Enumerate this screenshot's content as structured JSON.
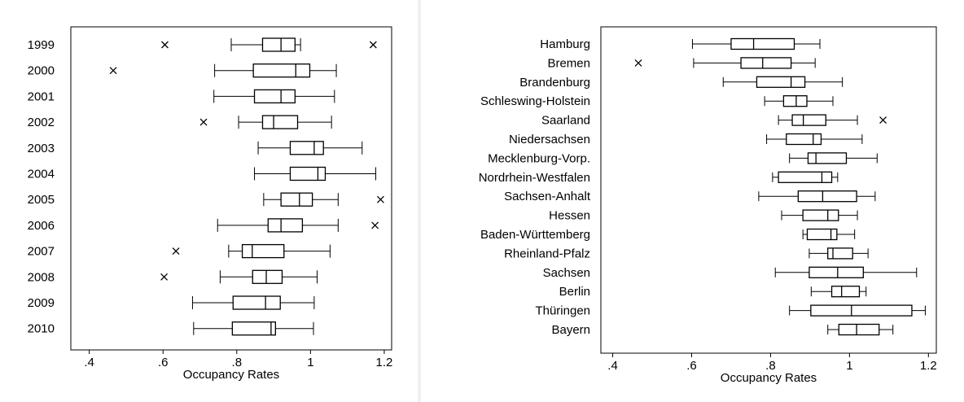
{
  "chart_data": [
    {
      "type": "boxplot",
      "orientation": "horizontal",
      "xlabel": "Occupancy Rates",
      "xlim": [
        0.35,
        1.22
      ],
      "xticks": [
        0.4,
        0.6,
        0.8,
        1.0,
        1.2
      ],
      "xtick_labels": [
        ".4",
        ".6",
        ".8",
        "1",
        "1.2"
      ],
      "categories": [
        "1999",
        "2000",
        "2001",
        "2002",
        "2003",
        "2004",
        "2005",
        "2006",
        "2007",
        "2008",
        "2009",
        "2010"
      ],
      "boxes": [
        {
          "label": "1999",
          "whisker_low": 0.785,
          "q1": 0.87,
          "median": 0.92,
          "q3": 0.958,
          "whisker_high": 0.973,
          "outliers": [
            0.605,
            1.17
          ]
        },
        {
          "label": "2000",
          "whisker_low": 0.74,
          "q1": 0.845,
          "median": 0.96,
          "q3": 0.998,
          "whisker_high": 1.07,
          "outliers": [
            0.465
          ]
        },
        {
          "label": "2001",
          "whisker_low": 0.738,
          "q1": 0.848,
          "median": 0.92,
          "q3": 0.958,
          "whisker_high": 1.065,
          "outliers": []
        },
        {
          "label": "2002",
          "whisker_low": 0.805,
          "q1": 0.87,
          "median": 0.9,
          "q3": 0.965,
          "whisker_high": 1.057,
          "outliers": [
            0.71
          ]
        },
        {
          "label": "2003",
          "whisker_low": 0.858,
          "q1": 0.945,
          "median": 1.01,
          "q3": 1.035,
          "whisker_high": 1.14,
          "outliers": []
        },
        {
          "label": "2004",
          "whisker_low": 0.848,
          "q1": 0.945,
          "median": 1.02,
          "q3": 1.04,
          "whisker_high": 1.177,
          "outliers": []
        },
        {
          "label": "2005",
          "whisker_low": 0.873,
          "q1": 0.92,
          "median": 0.97,
          "q3": 1.005,
          "whisker_high": 1.075,
          "outliers": [
            1.19
          ]
        },
        {
          "label": "2006",
          "whisker_low": 0.748,
          "q1": 0.885,
          "median": 0.92,
          "q3": 0.978,
          "whisker_high": 1.075,
          "outliers": [
            1.175
          ]
        },
        {
          "label": "2007",
          "whisker_low": 0.778,
          "q1": 0.815,
          "median": 0.842,
          "q3": 0.928,
          "whisker_high": 1.053,
          "outliers": [
            0.635
          ]
        },
        {
          "label": "2008",
          "whisker_low": 0.755,
          "q1": 0.843,
          "median": 0.88,
          "q3": 0.923,
          "whisker_high": 1.018,
          "outliers": [
            0.603
          ]
        },
        {
          "label": "2009",
          "whisker_low": 0.68,
          "q1": 0.79,
          "median": 0.878,
          "q3": 0.918,
          "whisker_high": 1.01,
          "outliers": []
        },
        {
          "label": "2010",
          "whisker_low": 0.683,
          "q1": 0.788,
          "median": 0.893,
          "q3": 0.905,
          "whisker_high": 1.008,
          "outliers": []
        }
      ]
    },
    {
      "type": "boxplot",
      "orientation": "horizontal",
      "xlabel": "Occupancy Rates",
      "xlim": [
        0.37,
        1.22
      ],
      "xticks": [
        0.4,
        0.6,
        0.8,
        1.0,
        1.2
      ],
      "xtick_labels": [
        ".4",
        ".6",
        ".8",
        "1",
        "1.2"
      ],
      "categories": [
        "Hamburg",
        "Bremen",
        "Brandenburg",
        "Schleswing-Holstein",
        "Saarland",
        "Niedersachsen",
        "Mecklenburg-Vorp.",
        "Nordrhein-Westfalen",
        "Sachsen-Anhalt",
        "Hessen",
        "Baden-Württemberg",
        "Rheinland-Pfalz",
        "Sachsen",
        "Berlin",
        "Thüringen",
        "Bayern"
      ],
      "boxes": [
        {
          "label": "Hamburg",
          "whisker_low": 0.602,
          "q1": 0.7,
          "median": 0.757,
          "q3": 0.86,
          "whisker_high": 0.925,
          "outliers": []
        },
        {
          "label": "Bremen",
          "whisker_low": 0.605,
          "q1": 0.725,
          "median": 0.78,
          "q3": 0.852,
          "whisker_high": 0.913,
          "outliers": [
            0.465
          ]
        },
        {
          "label": "Brandenburg",
          "whisker_low": 0.68,
          "q1": 0.765,
          "median": 0.852,
          "q3": 0.887,
          "whisker_high": 0.982,
          "outliers": []
        },
        {
          "label": "Schleswing-Holstein",
          "whisker_low": 0.785,
          "q1": 0.833,
          "median": 0.865,
          "q3": 0.892,
          "whisker_high": 0.958,
          "outliers": []
        },
        {
          "label": "Saarland",
          "whisker_low": 0.82,
          "q1": 0.855,
          "median": 0.883,
          "q3": 0.94,
          "whisker_high": 1.02,
          "outliers": [
            1.085
          ]
        },
        {
          "label": "Niedersachsen",
          "whisker_low": 0.79,
          "q1": 0.84,
          "median": 0.908,
          "q3": 0.928,
          "whisker_high": 1.032,
          "outliers": []
        },
        {
          "label": "Mecklenburg-Vorp.",
          "whisker_low": 0.848,
          "q1": 0.895,
          "median": 0.915,
          "q3": 0.992,
          "whisker_high": 1.07,
          "outliers": []
        },
        {
          "label": "Nordrhein-Westfalen",
          "whisker_low": 0.805,
          "q1": 0.82,
          "median": 0.93,
          "q3": 0.955,
          "whisker_high": 0.97,
          "outliers": []
        },
        {
          "label": "Sachsen-Anhalt",
          "whisker_low": 0.77,
          "q1": 0.87,
          "median": 0.932,
          "q3": 1.018,
          "whisker_high": 1.065,
          "outliers": []
        },
        {
          "label": "Hessen",
          "whisker_low": 0.828,
          "q1": 0.882,
          "median": 0.945,
          "q3": 0.972,
          "whisker_high": 1.02,
          "outliers": []
        },
        {
          "label": "Baden-Württemberg",
          "whisker_low": 0.882,
          "q1": 0.893,
          "median": 0.953,
          "q3": 0.968,
          "whisker_high": 1.013,
          "outliers": []
        },
        {
          "label": "Rheinland-Pfalz",
          "whisker_low": 0.898,
          "q1": 0.945,
          "median": 0.958,
          "q3": 1.008,
          "whisker_high": 1.047,
          "outliers": []
        },
        {
          "label": "Sachsen",
          "whisker_low": 0.812,
          "q1": 0.898,
          "median": 0.97,
          "q3": 1.035,
          "whisker_high": 1.17,
          "outliers": []
        },
        {
          "label": "Berlin",
          "whisker_low": 0.903,
          "q1": 0.955,
          "median": 0.98,
          "q3": 1.025,
          "whisker_high": 1.042,
          "outliers": []
        },
        {
          "label": "Thüringen",
          "whisker_low": 0.848,
          "q1": 0.902,
          "median": 1.005,
          "q3": 1.158,
          "whisker_high": 1.192,
          "outliers": []
        },
        {
          "label": "Bayern",
          "whisker_low": 0.945,
          "q1": 0.973,
          "median": 1.018,
          "q3": 1.075,
          "whisker_high": 1.11,
          "outliers": []
        }
      ]
    }
  ]
}
